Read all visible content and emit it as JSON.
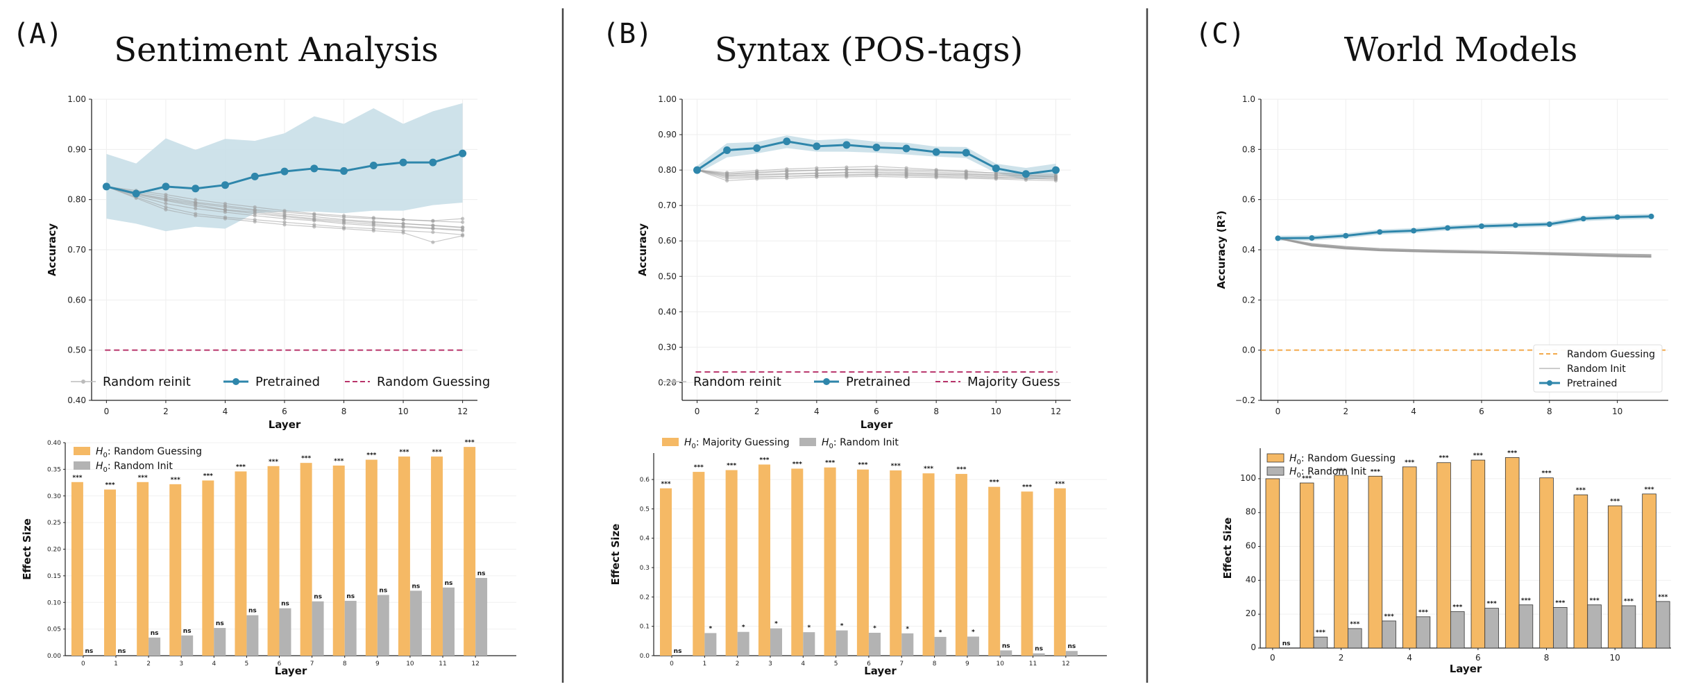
{
  "panels": [
    {
      "label": "(A)",
      "title": "Sentiment Analysis"
    },
    {
      "label": "(B)",
      "title": "Syntax (POS-tags)"
    },
    {
      "label": "(C)",
      "title": "World Models"
    }
  ],
  "chart_data": [
    {
      "id": "A-line",
      "type": "line",
      "xlabel": "Layer",
      "ylabel": "Accuracy",
      "xlim": [
        -0.5,
        12.5
      ],
      "ylim": [
        0.4,
        1.0
      ],
      "xticks": [
        0,
        2,
        4,
        6,
        8,
        10,
        12
      ],
      "yticks": [
        0.4,
        0.5,
        0.6,
        0.7,
        0.8,
        0.9,
        1.0
      ],
      "grid": true,
      "legend_position": "bottom",
      "x": [
        0,
        1,
        2,
        3,
        4,
        5,
        6,
        7,
        8,
        9,
        10,
        11,
        12
      ],
      "series": [
        {
          "name": "Pretrained",
          "values": [
            0.826,
            0.812,
            0.826,
            0.822,
            0.829,
            0.846,
            0.856,
            0.862,
            0.857,
            0.868,
            0.874,
            0.874,
            0.892
          ],
          "band_low": [
            0.762,
            0.752,
            0.737,
            0.746,
            0.742,
            0.773,
            0.776,
            0.776,
            0.773,
            0.778,
            0.778,
            0.789,
            0.794
          ],
          "band_high": [
            0.891,
            0.872,
            0.922,
            0.899,
            0.921,
            0.917,
            0.932,
            0.966,
            0.951,
            0.982,
            0.951,
            0.976,
            0.992
          ]
        },
        {
          "name": "Random reinit",
          "runs": [
            [
              0.826,
              0.812,
              0.8,
              0.79,
              0.78,
              0.775,
              0.768,
              0.762,
              0.758,
              0.754,
              0.752,
              0.749,
              0.745
            ],
            [
              0.826,
              0.808,
              0.792,
              0.782,
              0.775,
              0.768,
              0.762,
              0.758,
              0.752,
              0.748,
              0.745,
              0.742,
              0.738
            ],
            [
              0.826,
              0.815,
              0.806,
              0.795,
              0.788,
              0.78,
              0.775,
              0.77,
              0.765,
              0.762,
              0.76,
              0.758,
              0.762
            ],
            [
              0.826,
              0.805,
              0.785,
              0.772,
              0.765,
              0.76,
              0.755,
              0.75,
              0.745,
              0.742,
              0.738,
              0.735,
              0.73
            ],
            [
              0.826,
              0.81,
              0.798,
              0.787,
              0.779,
              0.772,
              0.766,
              0.76,
              0.755,
              0.751,
              0.747,
              0.743,
              0.74
            ],
            [
              0.826,
              0.818,
              0.81,
              0.8,
              0.792,
              0.785,
              0.778,
              0.772,
              0.768,
              0.764,
              0.76,
              0.757,
              0.755
            ],
            [
              0.826,
              0.803,
              0.78,
              0.768,
              0.762,
              0.756,
              0.75,
              0.746,
              0.742,
              0.738,
              0.734,
              0.715,
              0.728
            ],
            [
              0.826,
              0.812,
              0.802,
              0.793,
              0.785,
              0.778,
              0.771,
              0.766,
              0.76,
              0.756,
              0.752,
              0.748,
              0.744
            ]
          ]
        },
        {
          "name": "Random Guessing",
          "hline": 0.5
        }
      ]
    },
    {
      "id": "A-bar",
      "type": "bar",
      "xlabel": "Layer",
      "ylabel": "Effect Size",
      "ylim": [
        0,
        0.4
      ],
      "yticks": [
        0.0,
        0.05,
        0.1,
        0.15,
        0.2,
        0.25,
        0.3,
        0.35,
        0.4
      ],
      "categories": [
        "0",
        "1",
        "2",
        "3",
        "4",
        "5",
        "6",
        "7",
        "8",
        "9",
        "10",
        "11",
        "12"
      ],
      "legend_position": "top-left",
      "series": [
        {
          "name": "H0: Random Guessing",
          "legend_text": ": Random Guessing",
          "values": [
            0.326,
            0.312,
            0.326,
            0.322,
            0.329,
            0.346,
            0.356,
            0.362,
            0.357,
            0.368,
            0.374,
            0.374,
            0.392
          ],
          "sig": [
            "***",
            "***",
            "***",
            "***",
            "***",
            "***",
            "***",
            "***",
            "***",
            "***",
            "***",
            "***",
            "***"
          ]
        },
        {
          "name": "H0: Random Init",
          "legend_text": ": Random Init",
          "values": [
            0.0,
            0.0,
            0.034,
            0.038,
            0.052,
            0.076,
            0.089,
            0.102,
            0.103,
            0.114,
            0.122,
            0.128,
            0.146
          ],
          "sig": [
            "ns",
            "ns",
            "ns",
            "ns",
            "ns",
            "ns",
            "ns",
            "ns",
            "ns",
            "ns",
            "ns",
            "ns",
            "ns"
          ]
        }
      ]
    },
    {
      "id": "B-line",
      "type": "line",
      "xlabel": "Layer",
      "ylabel": "Accuracy",
      "xlim": [
        -0.5,
        12.5
      ],
      "ylim": [
        0.15,
        1.0
      ],
      "xticks": [
        0,
        2,
        4,
        6,
        8,
        10,
        12
      ],
      "yticks": [
        0.2,
        0.3,
        0.4,
        0.5,
        0.6,
        0.7,
        0.8,
        0.9,
        1.0
      ],
      "grid": true,
      "legend_position": "bottom",
      "x": [
        0,
        1,
        2,
        3,
        4,
        5,
        6,
        7,
        8,
        9,
        10,
        11,
        12
      ],
      "series": [
        {
          "name": "Pretrained",
          "values": [
            0.8,
            0.856,
            0.862,
            0.881,
            0.867,
            0.871,
            0.864,
            0.861,
            0.851,
            0.849,
            0.805,
            0.789,
            0.8
          ],
          "band_low": [
            0.79,
            0.836,
            0.847,
            0.862,
            0.852,
            0.852,
            0.849,
            0.844,
            0.838,
            0.834,
            0.792,
            0.772,
            0.78
          ],
          "band_high": [
            0.812,
            0.876,
            0.879,
            0.898,
            0.884,
            0.889,
            0.88,
            0.877,
            0.866,
            0.865,
            0.818,
            0.806,
            0.818
          ]
        },
        {
          "name": "Random reinit",
          "runs": [
            [
              0.8,
              0.785,
              0.788,
              0.79,
              0.792,
              0.794,
              0.795,
              0.793,
              0.79,
              0.788,
              0.786,
              0.783,
              0.782
            ],
            [
              0.8,
              0.78,
              0.782,
              0.783,
              0.784,
              0.785,
              0.786,
              0.784,
              0.782,
              0.78,
              0.778,
              0.776,
              0.775
            ],
            [
              0.8,
              0.79,
              0.794,
              0.798,
              0.8,
              0.802,
              0.803,
              0.801,
              0.798,
              0.795,
              0.792,
              0.79,
              0.788
            ],
            [
              0.8,
              0.77,
              0.775,
              0.777,
              0.78,
              0.781,
              0.782,
              0.78,
              0.779,
              0.777,
              0.775,
              0.772,
              0.77
            ],
            [
              0.8,
              0.788,
              0.792,
              0.796,
              0.799,
              0.801,
              0.8,
              0.797,
              0.794,
              0.791,
              0.787,
              0.784,
              0.78
            ],
            [
              0.8,
              0.776,
              0.779,
              0.782,
              0.785,
              0.787,
              0.788,
              0.787,
              0.785,
              0.783,
              0.78,
              0.777,
              0.774
            ],
            [
              0.8,
              0.783,
              0.786,
              0.788,
              0.79,
              0.792,
              0.792,
              0.79,
              0.788,
              0.786,
              0.783,
              0.78,
              0.778
            ],
            [
              0.8,
              0.793,
              0.798,
              0.803,
              0.806,
              0.808,
              0.81,
              0.806,
              0.801,
              0.797,
              0.791,
              0.786,
              0.784
            ]
          ]
        },
        {
          "name": "Majority Guess",
          "hline": 0.23
        }
      ]
    },
    {
      "id": "B-bar",
      "type": "bar",
      "xlabel": "Layer",
      "ylabel": "Effect Size",
      "ylim": [
        0,
        0.69
      ],
      "yticks": [
        0.0,
        0.1,
        0.2,
        0.3,
        0.4,
        0.5,
        0.6
      ],
      "categories": [
        "0",
        "1",
        "2",
        "3",
        "4",
        "5",
        "6",
        "7",
        "8",
        "9",
        "10",
        "11",
        "12"
      ],
      "legend_position": "top",
      "series": [
        {
          "name": "H0: Majority Guessing",
          "legend_text": ": Majority Guessing",
          "values": [
            0.57,
            0.626,
            0.632,
            0.651,
            0.637,
            0.641,
            0.634,
            0.631,
            0.621,
            0.619,
            0.575,
            0.559,
            0.57
          ],
          "sig": [
            "***",
            "***",
            "***",
            "***",
            "***",
            "***",
            "***",
            "***",
            "***",
            "***",
            "***",
            "***",
            "***"
          ]
        },
        {
          "name": "H0: Random Init",
          "legend_text": ": Random Init",
          "values": [
            0.0,
            0.077,
            0.081,
            0.093,
            0.08,
            0.086,
            0.078,
            0.076,
            0.064,
            0.065,
            0.018,
            0.008,
            0.016
          ],
          "sig": [
            "ns",
            "*",
            "*",
            "*",
            "*",
            "*",
            "*",
            "*",
            "*",
            "*",
            "ns",
            "ns",
            "ns"
          ]
        }
      ]
    },
    {
      "id": "C-line",
      "type": "line",
      "xlabel": "",
      "ylabel": "Accuracy (R²)",
      "xlim": [
        -0.5,
        11.5
      ],
      "ylim": [
        -0.2,
        1.0
      ],
      "xticks": [
        0,
        2,
        4,
        6,
        8,
        10
      ],
      "yticks": [
        -0.2,
        0.0,
        0.2,
        0.4,
        0.6,
        0.8,
        1.0
      ],
      "grid": true,
      "legend_position": "lower right",
      "x": [
        0,
        1,
        2,
        3,
        4,
        5,
        6,
        7,
        8,
        9,
        10,
        11
      ],
      "series": [
        {
          "name": "Pretrained",
          "values": [
            0.446,
            0.447,
            0.456,
            0.471,
            0.476,
            0.487,
            0.494,
            0.498,
            0.502,
            0.524,
            0.53,
            0.533
          ],
          "band_low": [
            0.436,
            0.437,
            0.446,
            0.461,
            0.466,
            0.477,
            0.484,
            0.488,
            0.492,
            0.514,
            0.52,
            0.523
          ],
          "band_high": [
            0.456,
            0.457,
            0.466,
            0.481,
            0.486,
            0.497,
            0.504,
            0.508,
            0.512,
            0.534,
            0.54,
            0.543
          ]
        },
        {
          "name": "Random Init",
          "runs": [
            [
              0.446,
              0.42,
              0.408,
              0.4,
              0.396,
              0.393,
              0.39,
              0.387,
              0.384,
              0.38,
              0.377,
              0.375
            ],
            [
              0.446,
              0.416,
              0.404,
              0.397,
              0.393,
              0.39,
              0.388,
              0.385,
              0.381,
              0.377,
              0.373,
              0.371
            ],
            [
              0.446,
              0.424,
              0.412,
              0.404,
              0.4,
              0.397,
              0.394,
              0.391,
              0.388,
              0.385,
              0.382,
              0.38
            ],
            [
              0.446,
              0.418,
              0.406,
              0.398,
              0.394,
              0.391,
              0.389,
              0.386,
              0.383,
              0.379,
              0.375,
              0.373
            ]
          ]
        },
        {
          "name": "Random Guessing",
          "hline": 0.0
        }
      ]
    },
    {
      "id": "C-bar",
      "type": "bar",
      "xlabel": "Layer",
      "ylabel": "Effect Size",
      "ylim": [
        0,
        118
      ],
      "yticks": [
        0,
        20,
        40,
        60,
        80,
        100
      ],
      "xticks": [
        0,
        2,
        4,
        6,
        8,
        10
      ],
      "categories": [
        "0",
        "1",
        "2",
        "3",
        "4",
        "5",
        "6",
        "7",
        "8",
        "9",
        "10",
        "11"
      ],
      "legend_position": "top-left",
      "series": [
        {
          "name": "H0: Random Guessing",
          "legend_text": ": Random Guessing",
          "values": [
            100,
            97.5,
            102,
            101.5,
            107,
            109.5,
            111,
            112.5,
            100.5,
            90.5,
            84,
            91
          ],
          "sig": [
            "***",
            "***",
            "***",
            "***",
            "***",
            "***",
            "***",
            "***",
            "***",
            "***",
            "***",
            "***"
          ]
        },
        {
          "name": "H0: Random Init",
          "legend_text": ": Random Init",
          "values": [
            0.0,
            6.5,
            11.5,
            16,
            18.5,
            21.5,
            23.5,
            25.5,
            24,
            25.5,
            25,
            27.5
          ],
          "sig": [
            "ns",
            "***",
            "***",
            "***",
            "***",
            "***",
            "***",
            "***",
            "***",
            "***",
            "***",
            "***"
          ]
        }
      ]
    }
  ],
  "colors": {
    "pretrained": "#2e86ab",
    "band": "#c9dfe8",
    "random": "#9a9a9a",
    "guess_line": "#b8336a",
    "guess_line_c": "#f3a94a",
    "bar_guess": "#f5b965",
    "bar_init": "#b3b3b3",
    "divider": "#444444"
  }
}
